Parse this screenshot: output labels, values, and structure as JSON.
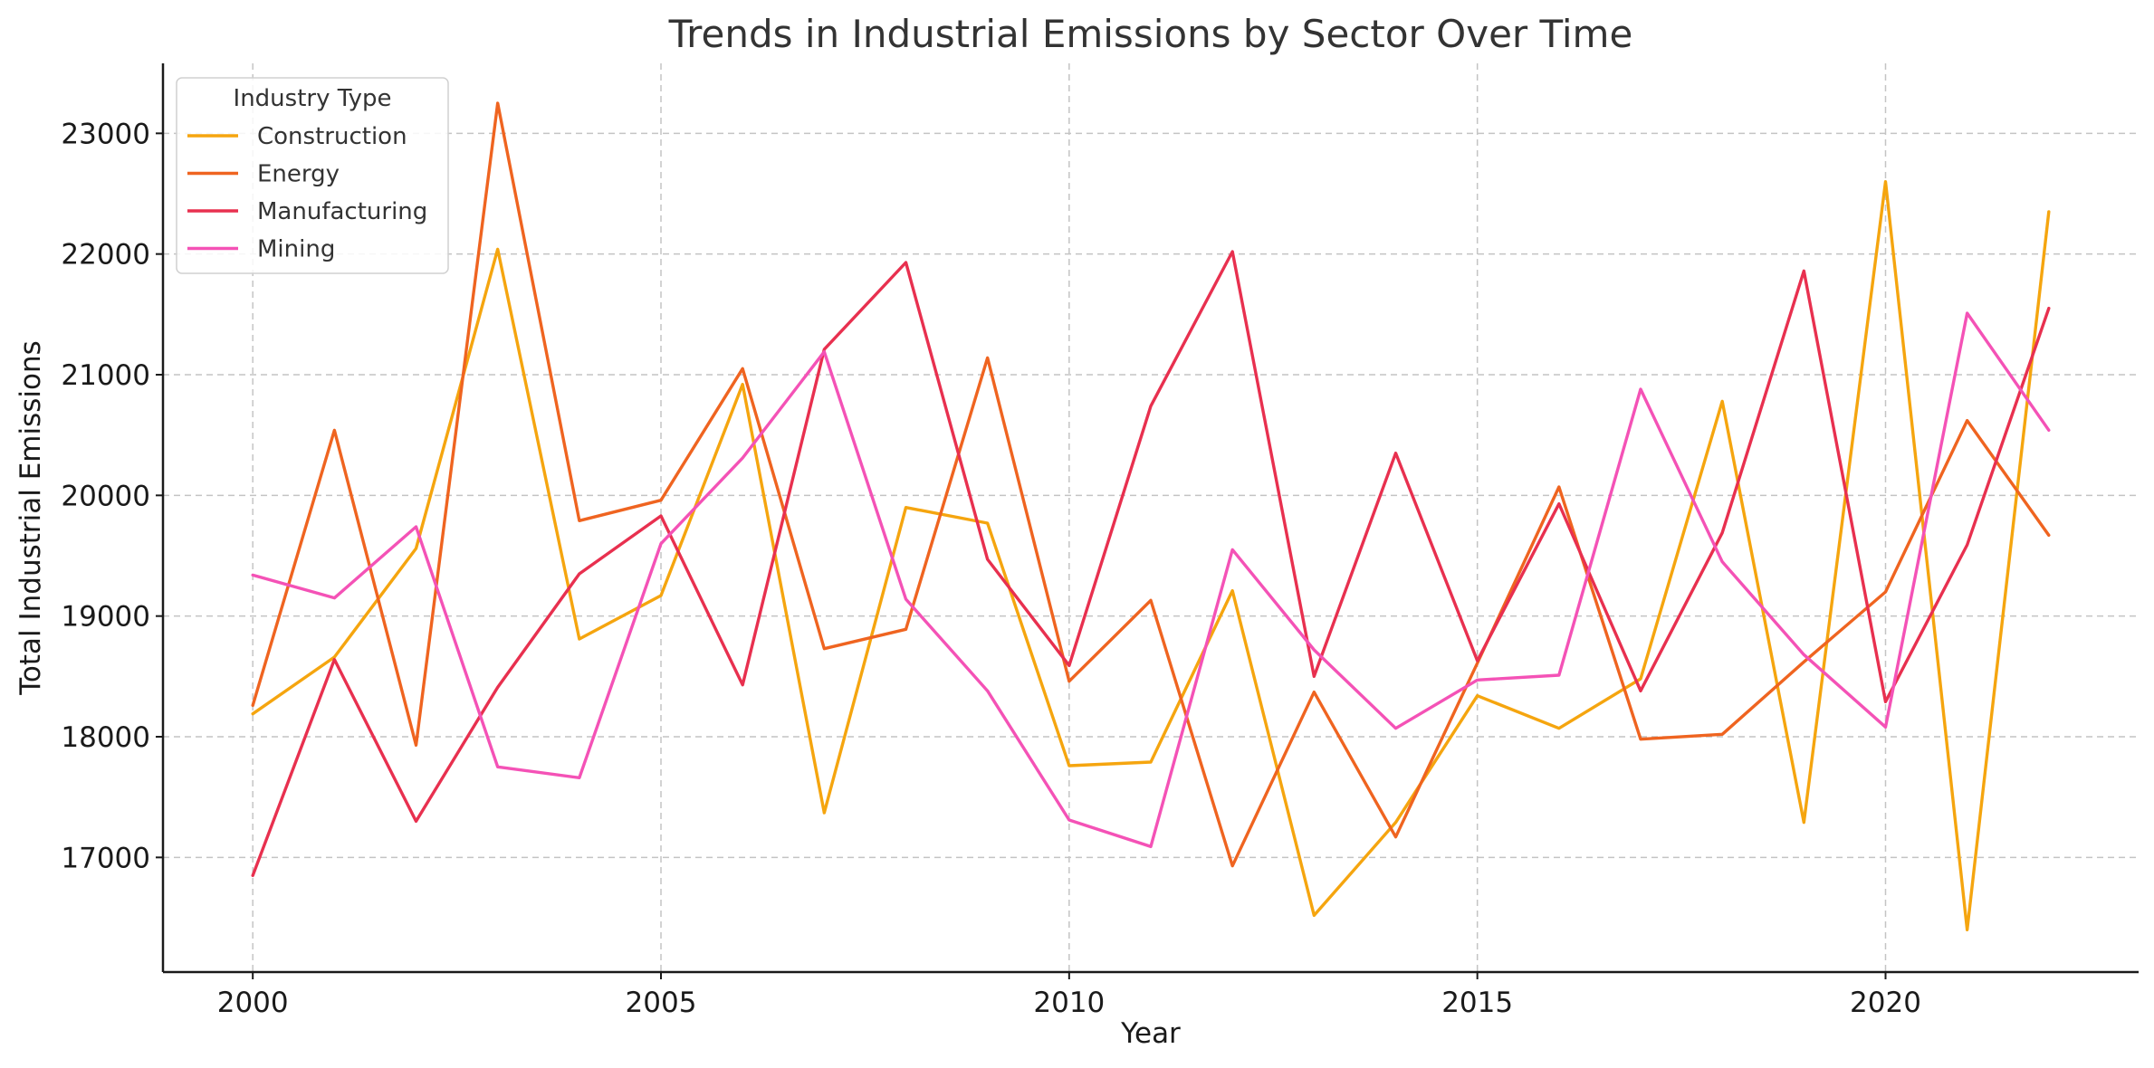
{
  "chart_data": {
    "type": "line",
    "title": "Trends in Industrial Emissions by Sector Over Time",
    "xlabel": "Year",
    "ylabel": "Total Industrial Emissions",
    "xlim": [
      1998.9,
      2023.1
    ],
    "ylim": [
      16050,
      23580
    ],
    "x_ticks": [
      2000,
      2005,
      2010,
      2015,
      2020
    ],
    "y_ticks": [
      17000,
      18000,
      19000,
      20000,
      21000,
      22000,
      23000
    ],
    "grid": true,
    "legend": {
      "title": "Industry Type",
      "placement": "top-left"
    },
    "x": [
      2000,
      2001,
      2002,
      2003,
      2004,
      2005,
      2006,
      2007,
      2008,
      2009,
      2010,
      2011,
      2012,
      2013,
      2014,
      2015,
      2016,
      2017,
      2018,
      2019,
      2020,
      2021,
      2022
    ],
    "series": [
      {
        "name": "Construction",
        "color": "#f5a50f",
        "values": [
          18190,
          18660,
          19560,
          22040,
          18810,
          19170,
          20920,
          17370,
          19900,
          19770,
          17760,
          17790,
          19210,
          16520,
          17290,
          18340,
          18070,
          18480,
          20780,
          17290,
          22600,
          16400,
          22350
        ]
      },
      {
        "name": "Energy",
        "color": "#ef6420",
        "values": [
          18260,
          20540,
          17930,
          23250,
          19790,
          19960,
          21050,
          18730,
          18890,
          21140,
          18460,
          19130,
          16930,
          18370,
          17170,
          18610,
          20070,
          17980,
          18020,
          18620,
          19200,
          20620,
          19670
        ]
      },
      {
        "name": "Manufacturing",
        "color": "#e8304f",
        "values": [
          16850,
          18640,
          17300,
          18410,
          19350,
          19830,
          18430,
          21210,
          21930,
          19470,
          18590,
          20740,
          22020,
          18500,
          20350,
          18630,
          19930,
          18380,
          19690,
          21860,
          18290,
          19590,
          21550
        ]
      },
      {
        "name": "Mining",
        "color": "#f452b6",
        "values": [
          19340,
          19150,
          19740,
          17750,
          17660,
          19600,
          20310,
          21190,
          19140,
          18380,
          17310,
          17090,
          19550,
          18720,
          18070,
          18470,
          18510,
          20880,
          19450,
          18680,
          18080,
          21510,
          20540
        ]
      }
    ]
  }
}
